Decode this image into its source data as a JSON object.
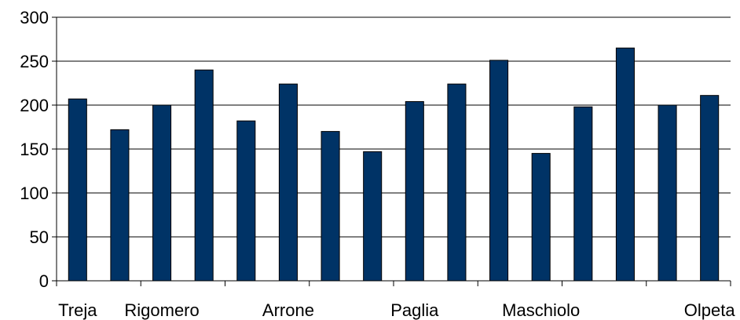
{
  "chart_data": {
    "type": "bar",
    "categories": [
      "Treja",
      "",
      "Rigomero",
      "",
      "",
      "Arrone",
      "",
      "",
      "Paglia",
      "",
      "",
      "Maschiolo",
      "",
      "",
      "",
      "Olpeta"
    ],
    "values": [
      207,
      172,
      200,
      240,
      182,
      224,
      170,
      147,
      204,
      224,
      251,
      145,
      198,
      265,
      200,
      211
    ],
    "ylim": [
      0,
      300
    ],
    "yticks": [
      0,
      50,
      100,
      150,
      200,
      250,
      300
    ],
    "grid": true,
    "legend": "none",
    "title": "",
    "xlabel": "",
    "ylabel": "",
    "colors": {
      "bar_fill": "#003366",
      "bar_stroke": "#000000",
      "grid": "#000000",
      "axis": "#000000",
      "plot_bg": "#ffffff"
    }
  }
}
